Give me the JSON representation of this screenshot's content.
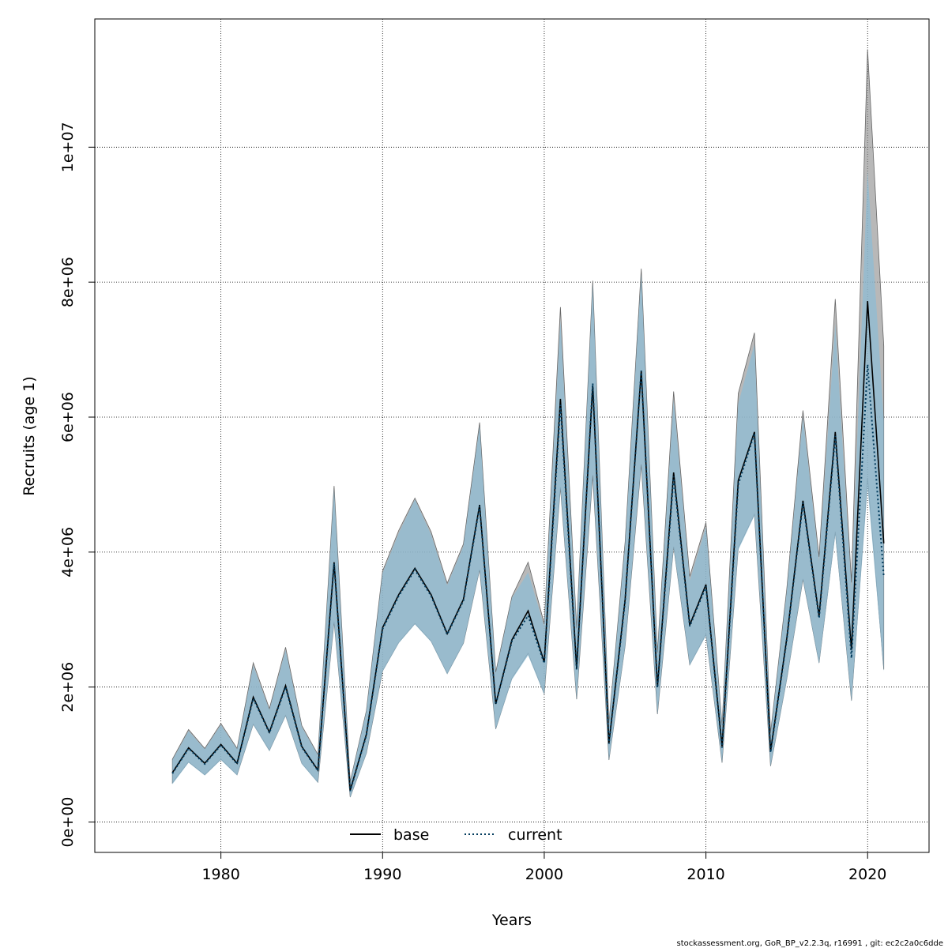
{
  "chart_data": {
    "type": "line",
    "xlabel": "Years",
    "ylabel": "Recruits (age 1)",
    "xlim": [
      1972.2,
      2023.8
    ],
    "ylim": [
      -450000,
      11900000
    ],
    "x_ticks": [
      1980,
      1990,
      2000,
      2010,
      2020
    ],
    "x_tick_labels": [
      "1980",
      "1990",
      "2000",
      "2010",
      "2020"
    ],
    "y_ticks": [
      0,
      2000000,
      4000000,
      6000000,
      8000000,
      10000000
    ],
    "y_tick_labels": [
      "0e+00",
      "2e+06",
      "4e+06",
      "6e+06",
      "8e+06",
      "1e+07"
    ],
    "grid": true,
    "legend_position": "bottom",
    "years": [
      1977,
      1978,
      1979,
      1980,
      1981,
      1982,
      1983,
      1984,
      1985,
      1986,
      1987,
      1988,
      1989,
      1990,
      1991,
      1992,
      1993,
      1994,
      1995,
      1996,
      1997,
      1998,
      1999,
      2000,
      2001,
      2002,
      2003,
      2004,
      2005,
      2006,
      2007,
      2008,
      2009,
      2010,
      2011,
      2012,
      2013,
      2014,
      2015,
      2016,
      2017,
      2018,
      2019,
      2020,
      2021
    ],
    "series": [
      {
        "name": "base",
        "line_style": "solid",
        "line_color": "#000000",
        "band_color": "#888888",
        "values": [
          730000,
          1100000,
          870000,
          1150000,
          870000,
          1850000,
          1330000,
          2020000,
          1120000,
          770000,
          3850000,
          470000,
          1300000,
          2880000,
          3370000,
          3760000,
          3370000,
          2790000,
          3300000,
          4700000,
          1750000,
          2700000,
          3130000,
          2370000,
          6270000,
          2280000,
          6470000,
          1170000,
          3300000,
          6680000,
          2000000,
          5180000,
          2920000,
          3520000,
          1120000,
          5060000,
          5780000,
          1050000,
          2720000,
          4760000,
          3050000,
          5780000,
          2550000,
          7720000,
          4130000
        ],
        "lower": [
          580000,
          890000,
          700000,
          930000,
          700000,
          1450000,
          1060000,
          1580000,
          870000,
          590000,
          2970000,
          370000,
          1020000,
          2240000,
          2660000,
          2940000,
          2680000,
          2200000,
          2650000,
          3740000,
          1380000,
          2130000,
          2500000,
          1900000,
          4960000,
          1820000,
          5140000,
          920000,
          2610000,
          5300000,
          1600000,
          4080000,
          2330000,
          2780000,
          880000,
          4060000,
          4560000,
          830000,
          2120000,
          3600000,
          2360000,
          4300000,
          1800000,
          5100000,
          2260000
        ],
        "upper": [
          930000,
          1370000,
          1090000,
          1460000,
          1090000,
          2360000,
          1680000,
          2590000,
          1430000,
          1000000,
          4980000,
          600000,
          1650000,
          3720000,
          4320000,
          4800000,
          4300000,
          3540000,
          4120000,
          5920000,
          2220000,
          3340000,
          3850000,
          2940000,
          7630000,
          2870000,
          8020000,
          1470000,
          4150000,
          8200000,
          2510000,
          6380000,
          3640000,
          4440000,
          1430000,
          6350000,
          7250000,
          1320000,
          3450000,
          6100000,
          3930000,
          7750000,
          3550000,
          11450000,
          7050000
        ]
      },
      {
        "name": "current",
        "line_style": "dotted",
        "line_color": "#003a5c",
        "band_color": "#8fbcd4",
        "values": [
          720000,
          1090000,
          860000,
          1140000,
          860000,
          1830000,
          1320000,
          2000000,
          1110000,
          760000,
          3830000,
          460000,
          1290000,
          2860000,
          3350000,
          3740000,
          3350000,
          2780000,
          3280000,
          4680000,
          1740000,
          2680000,
          3060000,
          2350000,
          6180000,
          2260000,
          6500000,
          1160000,
          3270000,
          6690000,
          1990000,
          5120000,
          2900000,
          3490000,
          1100000,
          5000000,
          5760000,
          1030000,
          2700000,
          4730000,
          3020000,
          5720000,
          2430000,
          6780000,
          3640000
        ],
        "lower": [
          560000,
          880000,
          690000,
          920000,
          690000,
          1440000,
          1050000,
          1570000,
          860000,
          580000,
          2950000,
          360000,
          1010000,
          2230000,
          2650000,
          2930000,
          2670000,
          2190000,
          2640000,
          3730000,
          1370000,
          2110000,
          2470000,
          1890000,
          4940000,
          1810000,
          5150000,
          910000,
          2590000,
          5310000,
          1590000,
          4060000,
          2320000,
          2760000,
          870000,
          4030000,
          4540000,
          820000,
          2100000,
          3590000,
          2340000,
          4250000,
          1780000,
          4950000,
          2230000
        ],
        "upper": [
          920000,
          1350000,
          1080000,
          1440000,
          1080000,
          2320000,
          1660000,
          2550000,
          1410000,
          990000,
          4940000,
          590000,
          1640000,
          3690000,
          4280000,
          4780000,
          4260000,
          3510000,
          4090000,
          5870000,
          2200000,
          3320000,
          3700000,
          2900000,
          7440000,
          2840000,
          7980000,
          1460000,
          4110000,
          8130000,
          2480000,
          6260000,
          3580000,
          4370000,
          1410000,
          6200000,
          7080000,
          1300000,
          3420000,
          6000000,
          3860000,
          7380000,
          3440000,
          9650000,
          5950000
        ]
      }
    ]
  },
  "footer": "stockassessment.org, GoR_BP_v2.2.3q, r16991 , git: ec2c2a0c6dde"
}
